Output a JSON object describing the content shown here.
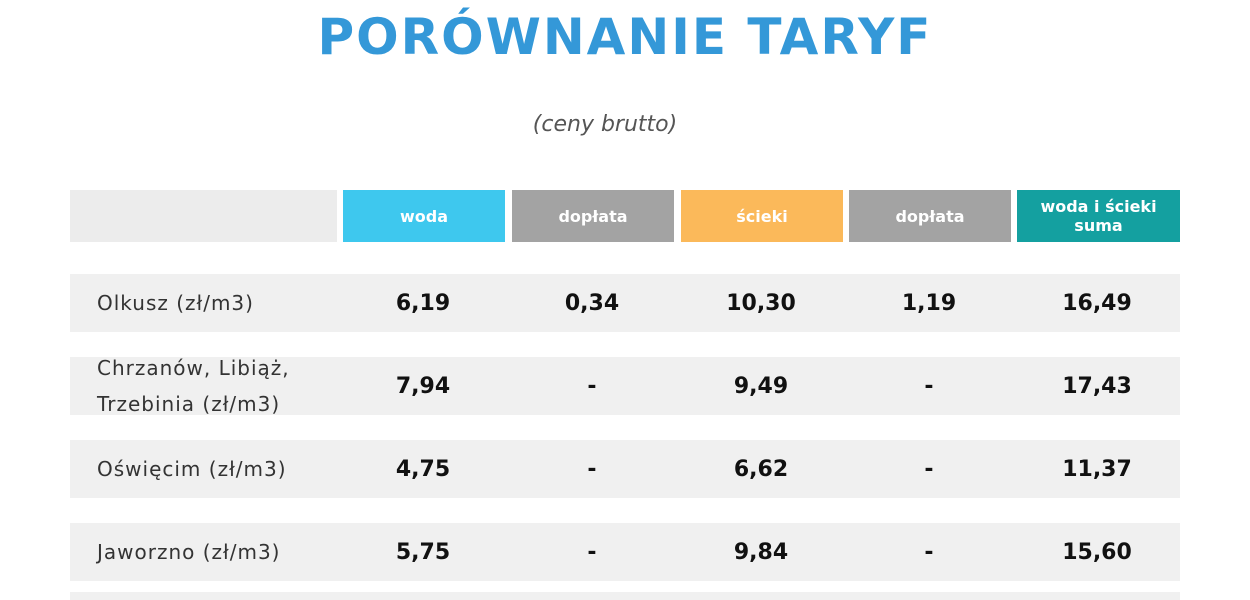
{
  "header": {
    "title": "PORÓWNANIE TARYF",
    "subtitle": "(ceny brutto)"
  },
  "table": {
    "columns": [
      "woda",
      "dopłata",
      "ścieki",
      "dopłata",
      "woda i ścieki suma"
    ],
    "rows": [
      [
        "Olkusz (zł/m3)",
        "6,19",
        "0,34",
        "10,30",
        "1,19",
        "16,49"
      ],
      [
        "Chrzanów, Libiąż, Trzebinia (zł/m3)",
        "7,94",
        "-",
        "9,49",
        "-",
        "17,43"
      ],
      [
        "Oświęcim (zł/m3)",
        "4,75",
        "-",
        "6,62",
        "-",
        "11,37"
      ],
      [
        "Jaworzno (zł/m3)",
        "5,75",
        "-",
        "9,84",
        "-",
        "15,60"
      ]
    ]
  }
}
